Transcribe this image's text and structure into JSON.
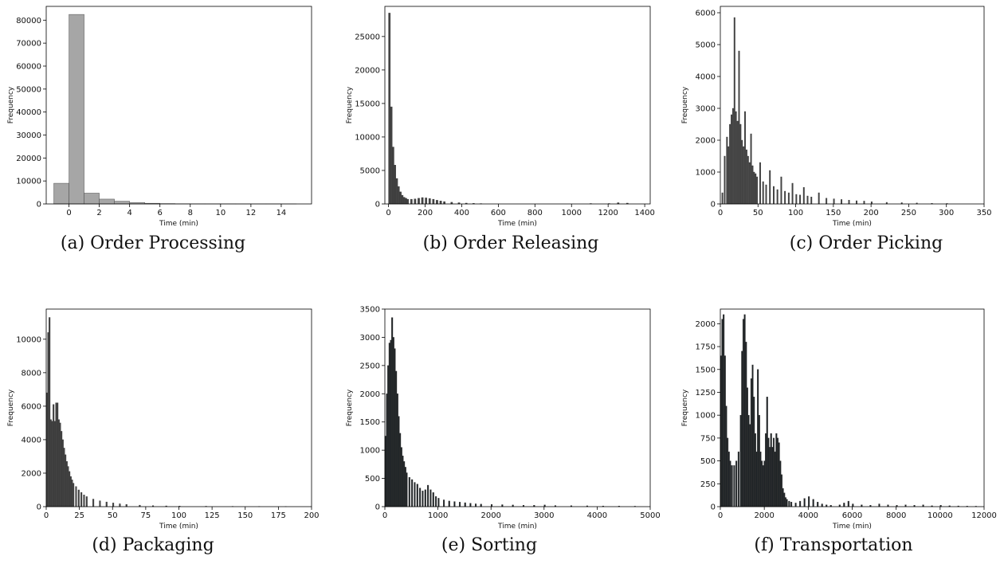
{
  "colors": {
    "hist_fill_light": "#a6a6a6",
    "hist_fill_dark": "#444444",
    "hist_fill_darkest": "#1e2326",
    "edge": "#333333"
  },
  "chart_data": [
    {
      "type": "bar",
      "caption": "(a) Order Processing",
      "xlabel": "Time (min)",
      "ylabel": "Frequency",
      "xlim": [
        -1.5,
        16
      ],
      "ylim": [
        0,
        86000
      ],
      "xticks": [
        0,
        2,
        4,
        6,
        8,
        10,
        12,
        14
      ],
      "yticks": [
        0,
        10000,
        20000,
        30000,
        40000,
        50000,
        60000,
        70000,
        80000
      ],
      "bin_width": 1,
      "bin_start": [
        -1,
        0,
        1,
        2,
        3,
        4,
        5,
        6,
        7,
        8,
        9,
        10,
        11,
        12,
        13,
        14
      ],
      "values": [
        9000,
        82500,
        4700,
        2100,
        1200,
        600,
        300,
        150,
        90,
        60,
        40,
        30,
        20,
        15,
        10,
        8
      ]
    },
    {
      "type": "bar",
      "caption": "(b) Order Releasing",
      "xlabel": "Time (min)",
      "ylabel": "Frequency",
      "xlim": [
        -20,
        1430
      ],
      "ylim": [
        0,
        29500
      ],
      "xticks": [
        0,
        200,
        400,
        600,
        800,
        1000,
        1200,
        1400
      ],
      "yticks": [
        0,
        5000,
        10000,
        15000,
        20000,
        25000
      ],
      "bin_width": 10,
      "bin_start": [
        0,
        10,
        20,
        30,
        40,
        50,
        60,
        70,
        80,
        90,
        100,
        120,
        140,
        160,
        180,
        200,
        220,
        240,
        260,
        280,
        300,
        340,
        380,
        420,
        460,
        500,
        1100,
        1200,
        1250,
        1300
      ],
      "values": [
        28500,
        14500,
        8500,
        5800,
        3800,
        2600,
        1800,
        1300,
        1000,
        850,
        700,
        700,
        750,
        850,
        950,
        900,
        800,
        700,
        550,
        450,
        350,
        250,
        180,
        120,
        80,
        50,
        60,
        60,
        180,
        120
      ]
    },
    {
      "type": "bar",
      "caption": "(c) Order Picking",
      "xlabel": "Time (min)",
      "ylabel": "Frequency",
      "xlim": [
        0,
        350
      ],
      "ylim": [
        0,
        6200
      ],
      "xticks": [
        0,
        50,
        100,
        150,
        200,
        250,
        300,
        350
      ],
      "yticks": [
        0,
        1000,
        2000,
        3000,
        4000,
        5000,
        6000
      ],
      "bin_width": 1.6,
      "bin_start": [
        2,
        5,
        8,
        10,
        12,
        14,
        16,
        18,
        20,
        22,
        24,
        26,
        28,
        30,
        32,
        34,
        36,
        38,
        40,
        42,
        44,
        46,
        48,
        52,
        56,
        60,
        65,
        70,
        75,
        80,
        85,
        90,
        95,
        100,
        105,
        110,
        115,
        120,
        130,
        140,
        150,
        160,
        170,
        180,
        190,
        200,
        220,
        240,
        260,
        280,
        300
      ],
      "values": [
        350,
        1500,
        2100,
        1800,
        2500,
        2800,
        3000,
        5850,
        2900,
        2600,
        4800,
        2500,
        2000,
        1800,
        2900,
        1700,
        1500,
        1300,
        2200,
        1200,
        1000,
        950,
        850,
        1300,
        700,
        600,
        1050,
        550,
        450,
        850,
        400,
        350,
        650,
        300,
        280,
        520,
        250,
        220,
        350,
        180,
        160,
        140,
        120,
        100,
        90,
        70,
        50,
        40,
        30,
        20,
        15
      ]
    },
    {
      "type": "bar",
      "caption": "(d) Packaging",
      "xlabel": "Time (min)",
      "ylabel": "Frequency",
      "xlim": [
        0,
        200
      ],
      "ylim": [
        0,
        11800
      ],
      "xticks": [
        0,
        25,
        50,
        75,
        100,
        125,
        150,
        175,
        200
      ],
      "yticks": [
        0,
        2000,
        4000,
        6000,
        8000,
        10000
      ],
      "bin_width": 1,
      "bin_start": [
        0,
        1,
        2,
        3,
        4,
        5,
        6,
        7,
        8,
        9,
        10,
        11,
        12,
        13,
        14,
        15,
        16,
        17,
        18,
        19,
        20,
        22,
        24,
        26,
        28,
        30,
        35,
        40,
        45,
        50,
        55,
        60,
        70,
        80,
        90,
        100,
        120,
        140,
        160,
        180
      ],
      "values": [
        6800,
        10400,
        11300,
        5200,
        5100,
        6100,
        5100,
        6200,
        6200,
        5200,
        5000,
        4500,
        4000,
        3500,
        3100,
        2700,
        2400,
        2100,
        1800,
        1600,
        1400,
        1200,
        1000,
        850,
        700,
        600,
        450,
        350,
        280,
        220,
        170,
        130,
        90,
        60,
        45,
        35,
        25,
        18,
        12,
        8
      ]
    },
    {
      "type": "bar",
      "caption": "(e) Sorting",
      "xlabel": "Time (min)",
      "ylabel": "Frequency",
      "xlim": [
        0,
        5000
      ],
      "ylim": [
        0,
        3500
      ],
      "xticks": [
        0,
        1000,
        2000,
        3000,
        4000,
        5000
      ],
      "yticks": [
        0,
        500,
        1000,
        1500,
        2000,
        2500,
        3000,
        3500
      ],
      "bin_width": 25,
      "bin_start": [
        0,
        25,
        50,
        75,
        100,
        125,
        150,
        175,
        200,
        225,
        250,
        275,
        300,
        325,
        350,
        375,
        400,
        450,
        500,
        550,
        600,
        650,
        700,
        750,
        800,
        850,
        900,
        950,
        1000,
        1100,
        1200,
        1300,
        1400,
        1500,
        1600,
        1700,
        1800,
        2000,
        2200,
        2400,
        2600,
        2800,
        3000,
        3200,
        3500,
        3800,
        4100,
        4400,
        4700
      ],
      "values": [
        1250,
        2000,
        2500,
        2900,
        2950,
        3350,
        3000,
        2800,
        2400,
        2000,
        1600,
        1300,
        1050,
        900,
        800,
        700,
        600,
        520,
        480,
        430,
        400,
        330,
        280,
        300,
        380,
        300,
        250,
        180,
        150,
        120,
        100,
        90,
        80,
        70,
        60,
        50,
        45,
        40,
        35,
        30,
        25,
        25,
        30,
        20,
        18,
        15,
        12,
        10,
        8
      ]
    },
    {
      "type": "bar",
      "caption": "(f) Transportation",
      "xlabel": "Time (min)",
      "ylabel": "Frequency",
      "xlim": [
        0,
        12000
      ],
      "ylim": [
        0,
        2160
      ],
      "xticks": [
        0,
        2000,
        4000,
        6000,
        8000,
        10000,
        12000
      ],
      "yticks": [
        0,
        250,
        500,
        750,
        1000,
        1250,
        1500,
        1750,
        2000
      ],
      "bin_width": 60,
      "bin_start": [
        0,
        60,
        120,
        180,
        240,
        300,
        360,
        420,
        500,
        600,
        700,
        800,
        900,
        960,
        1020,
        1080,
        1140,
        1200,
        1260,
        1320,
        1380,
        1440,
        1500,
        1560,
        1620,
        1680,
        1740,
        1800,
        1860,
        1920,
        1980,
        2040,
        2100,
        2160,
        2220,
        2280,
        2340,
        2400,
        2460,
        2520,
        2580,
        2640,
        2700,
        2760,
        2820,
        2880,
        2940,
        3000,
        3100,
        3200,
        3400,
        3600,
        3800,
        4000,
        4200,
        4400,
        4600,
        4800,
        5000,
        5400,
        5600,
        5800,
        6000,
        6400,
        6800,
        7200,
        7600,
        8000,
        8400,
        8800,
        9200,
        9600,
        10000,
        10400,
        10800,
        11200,
        11600
      ],
      "values": [
        1650,
        2050,
        2100,
        1650,
        1100,
        750,
        600,
        500,
        450,
        450,
        500,
        600,
        1000,
        1700,
        2050,
        2100,
        1800,
        1300,
        1000,
        900,
        1400,
        1550,
        1200,
        800,
        600,
        1500,
        1000,
        600,
        500,
        450,
        500,
        800,
        1200,
        750,
        650,
        800,
        650,
        750,
        600,
        800,
        750,
        700,
        500,
        350,
        200,
        150,
        100,
        80,
        60,
        50,
        40,
        60,
        90,
        110,
        80,
        50,
        30,
        20,
        15,
        20,
        40,
        60,
        30,
        20,
        15,
        30,
        20,
        15,
        20,
        15,
        20,
        10,
        15,
        10,
        8,
        6,
        5
      ]
    }
  ]
}
